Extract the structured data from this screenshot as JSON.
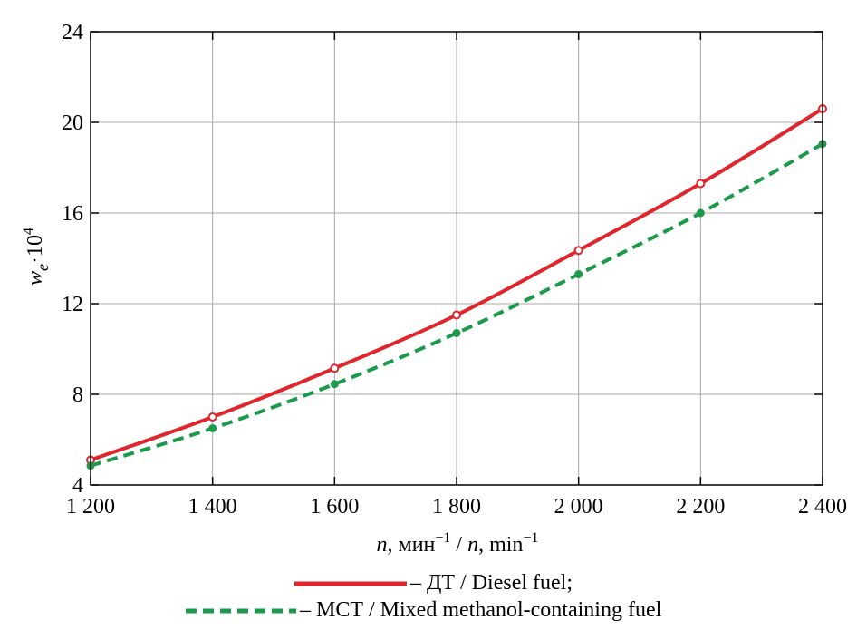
{
  "chart_data": {
    "type": "line",
    "xlabel": {
      "var": "n",
      "text": ", мин",
      "sup": "−1",
      "sep": " / ",
      "var2": "n",
      "text2": ", min",
      "sup2": "−1"
    },
    "ylabel": {
      "var": "w",
      "sub": "e",
      "text": "·10",
      "sup": "4"
    },
    "xlim": [
      1200,
      2400
    ],
    "ylim": [
      4,
      24
    ],
    "x_ticks": [
      1200,
      1400,
      1600,
      1800,
      2000,
      2200,
      2400
    ],
    "x_tick_labels": [
      "1 200",
      "1 400",
      "1 600",
      "1 800",
      "2 000",
      "2 200",
      "2 400"
    ],
    "y_ticks": [
      4,
      8,
      12,
      16,
      20,
      24
    ],
    "y_tick_labels": [
      "4",
      "8",
      "12",
      "16",
      "20",
      "24"
    ],
    "grid": true,
    "x": [
      1200,
      1400,
      1600,
      1800,
      2000,
      2200,
      2400
    ],
    "series": [
      {
        "name": "– ДТ / Diesel fuel;",
        "color": "#e0262c",
        "dash": "solid",
        "marker": "open-circle",
        "values": [
          5.1,
          7.0,
          9.15,
          11.5,
          14.35,
          17.3,
          20.6
        ]
      },
      {
        "name": "– МСТ / Mixed methanol-containing fuel",
        "color": "#1a9a4a",
        "dash": "dashed",
        "marker": "filled-circle",
        "values": [
          4.85,
          6.5,
          8.45,
          10.7,
          13.3,
          16.0,
          19.05
        ]
      }
    ],
    "legend_position": "bottom"
  }
}
